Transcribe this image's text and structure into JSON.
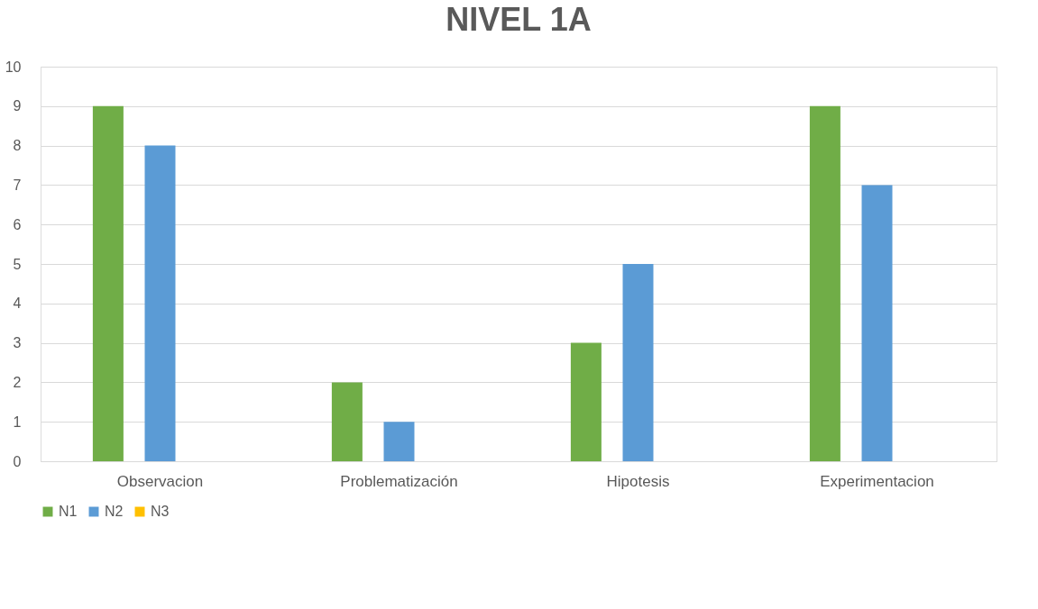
{
  "chart_data": {
    "type": "bar",
    "title": "NIVEL 1A",
    "categories": [
      "Observacion",
      "Problematización",
      "Hipotesis",
      "Experimentacion"
    ],
    "series": [
      {
        "name": "N1",
        "color": "#70ad47",
        "values": [
          9,
          2,
          3,
          9
        ]
      },
      {
        "name": "N2",
        "color": "#5b9bd5",
        "values": [
          8,
          1,
          5,
          7
        ]
      },
      {
        "name": "N3",
        "color": "#ffc000",
        "values": [
          0,
          0,
          0,
          0
        ]
      }
    ],
    "ylim": [
      0,
      10
    ],
    "yticks": [
      0,
      1,
      2,
      3,
      4,
      5,
      6,
      7,
      8,
      9,
      10
    ],
    "grid": "y",
    "legend": "bottom"
  }
}
